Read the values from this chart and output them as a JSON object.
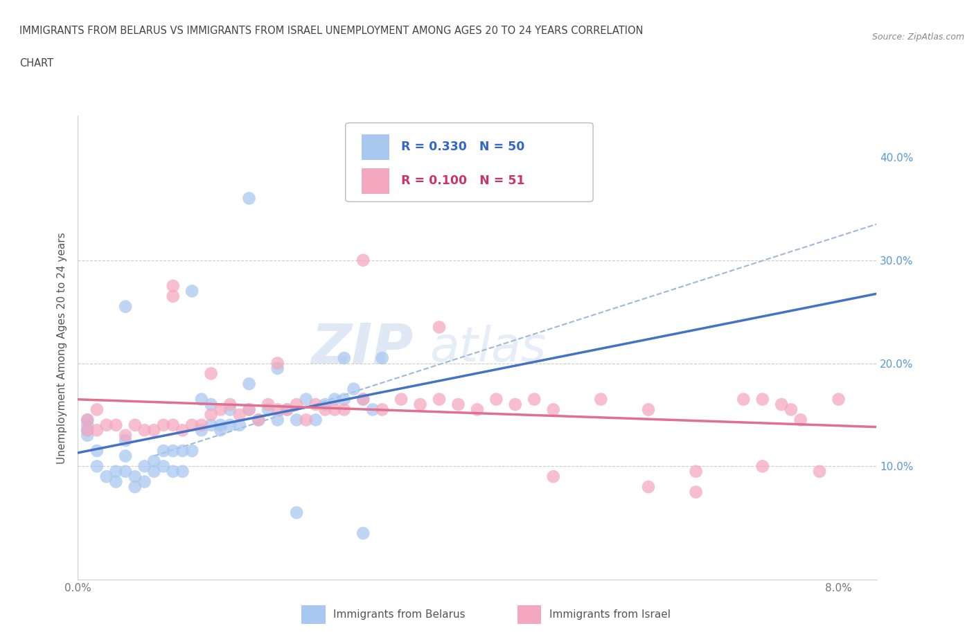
{
  "title_line1": "IMMIGRANTS FROM BELARUS VS IMMIGRANTS FROM ISRAEL UNEMPLOYMENT AMONG AGES 20 TO 24 YEARS CORRELATION",
  "title_line2": "CHART",
  "source_text": "Source: ZipAtlas.com",
  "ylabel": "Unemployment Among Ages 20 to 24 years",
  "xlim": [
    0.0,
    0.084
  ],
  "ylim": [
    -0.01,
    0.44
  ],
  "color_belarus": "#a8c8f0",
  "color_israel": "#f4a8c0",
  "color_line_belarus": "#4472c4",
  "color_line_israel": "#e07090",
  "color_dashed": "#a0b8d8",
  "watermark_zip": "ZIP",
  "watermark_atlas": "atlas",
  "belarus_x": [
    0.001,
    0.001,
    0.001,
    0.001,
    0.002,
    0.002,
    0.003,
    0.004,
    0.004,
    0.005,
    0.005,
    0.005,
    0.006,
    0.006,
    0.007,
    0.007,
    0.008,
    0.008,
    0.009,
    0.009,
    0.01,
    0.01,
    0.011,
    0.011,
    0.012,
    0.013,
    0.013,
    0.014,
    0.014,
    0.015,
    0.015,
    0.016,
    0.016,
    0.017,
    0.018,
    0.018,
    0.019,
    0.02,
    0.021,
    0.022,
    0.023,
    0.024,
    0.025,
    0.026,
    0.027,
    0.028,
    0.029,
    0.03,
    0.031,
    0.032
  ],
  "belarus_y": [
    0.13,
    0.135,
    0.14,
    0.145,
    0.1,
    0.115,
    0.09,
    0.085,
    0.095,
    0.095,
    0.11,
    0.125,
    0.08,
    0.09,
    0.085,
    0.1,
    0.095,
    0.105,
    0.1,
    0.115,
    0.095,
    0.115,
    0.095,
    0.115,
    0.115,
    0.135,
    0.165,
    0.14,
    0.16,
    0.135,
    0.14,
    0.14,
    0.155,
    0.14,
    0.155,
    0.18,
    0.145,
    0.155,
    0.145,
    0.155,
    0.145,
    0.165,
    0.145,
    0.16,
    0.165,
    0.165,
    0.175,
    0.165,
    0.155,
    0.205
  ],
  "belarus_y_outliers": [
    0.36,
    0.27,
    0.255,
    0.205,
    0.195,
    0.035,
    0.055
  ],
  "belarus_x_outliers": [
    0.018,
    0.012,
    0.005,
    0.028,
    0.021,
    0.03,
    0.023
  ],
  "israel_x": [
    0.001,
    0.001,
    0.002,
    0.002,
    0.003,
    0.004,
    0.005,
    0.006,
    0.007,
    0.008,
    0.009,
    0.01,
    0.011,
    0.012,
    0.013,
    0.014,
    0.015,
    0.016,
    0.017,
    0.018,
    0.019,
    0.02,
    0.021,
    0.022,
    0.023,
    0.024,
    0.025,
    0.026,
    0.027,
    0.028,
    0.03,
    0.032,
    0.034,
    0.036,
    0.038,
    0.04,
    0.042,
    0.044,
    0.046,
    0.048,
    0.05,
    0.055,
    0.06,
    0.065,
    0.07,
    0.072,
    0.074,
    0.075,
    0.076,
    0.078,
    0.08
  ],
  "israel_y": [
    0.135,
    0.145,
    0.135,
    0.155,
    0.14,
    0.14,
    0.13,
    0.14,
    0.135,
    0.135,
    0.14,
    0.14,
    0.135,
    0.14,
    0.14,
    0.15,
    0.155,
    0.16,
    0.15,
    0.155,
    0.145,
    0.16,
    0.155,
    0.155,
    0.16,
    0.145,
    0.16,
    0.155,
    0.155,
    0.155,
    0.165,
    0.155,
    0.165,
    0.16,
    0.165,
    0.16,
    0.155,
    0.165,
    0.16,
    0.165,
    0.155,
    0.165,
    0.155,
    0.095,
    0.165,
    0.165,
    0.16,
    0.155,
    0.145,
    0.095,
    0.165
  ],
  "israel_y_outliers": [
    0.3,
    0.275,
    0.265,
    0.235,
    0.2,
    0.19,
    0.1,
    0.09,
    0.08,
    0.075
  ],
  "israel_x_outliers": [
    0.03,
    0.01,
    0.01,
    0.038,
    0.021,
    0.014,
    0.072,
    0.05,
    0.06,
    0.065
  ]
}
